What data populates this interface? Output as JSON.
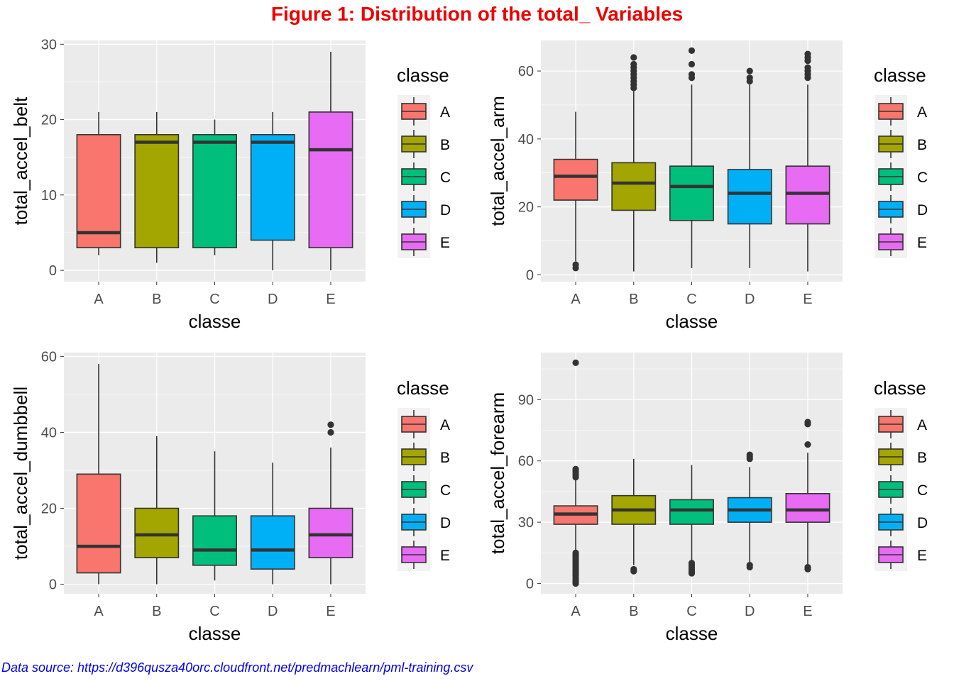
{
  "title": "Figure 1: Distribution of the total_ Variables",
  "caption": "Data source: https://d396qusza40orc.cloudfront.net/predmachlearn/pml-training.csv",
  "colors": {
    "title": "#ee0000",
    "caption": "#0000ee",
    "panel_bg": "#ebebeb",
    "grid": "#ffffff",
    "axis_text": "#4d4d4d",
    "text": "#000000",
    "box_line": "#333333",
    "classes": {
      "A": "#f8766d",
      "B": "#a3a500",
      "C": "#00bf7d",
      "D": "#00b0f6",
      "E": "#e76bf3"
    }
  },
  "legend": {
    "title": "classe",
    "items": [
      "A",
      "B",
      "C",
      "D",
      "E"
    ],
    "placement": "right"
  },
  "chart_data": [
    {
      "type": "boxplot",
      "xlabel": "classe",
      "ylabel": "total_accel_belt",
      "categories": [
        "A",
        "B",
        "C",
        "D",
        "E"
      ],
      "ylim": [
        -1.5,
        30.5
      ],
      "yticks": [
        0,
        10,
        20,
        30
      ],
      "boxes": [
        {
          "category": "A",
          "whisker_low": 2,
          "q1": 3,
          "median": 5,
          "q3": 18,
          "whisker_high": 21,
          "outliers": []
        },
        {
          "category": "B",
          "whisker_low": 1,
          "q1": 3,
          "median": 17,
          "q3": 18,
          "whisker_high": 21,
          "outliers": []
        },
        {
          "category": "C",
          "whisker_low": 2,
          "q1": 3,
          "median": 17,
          "q3": 18,
          "whisker_high": 20,
          "outliers": []
        },
        {
          "category": "D",
          "whisker_low": 0,
          "q1": 4,
          "median": 17,
          "q3": 18,
          "whisker_high": 21,
          "outliers": []
        },
        {
          "category": "E",
          "whisker_low": 0,
          "q1": 3,
          "median": 16,
          "q3": 21,
          "whisker_high": 29,
          "outliers": []
        }
      ]
    },
    {
      "type": "boxplot",
      "xlabel": "classe",
      "ylabel": "total_accel_arm",
      "categories": [
        "A",
        "B",
        "C",
        "D",
        "E"
      ],
      "ylim": [
        -2,
        69
      ],
      "yticks": [
        0,
        20,
        40,
        60
      ],
      "boxes": [
        {
          "category": "A",
          "whisker_low": 4,
          "q1": 22,
          "median": 29,
          "q3": 34,
          "whisker_high": 48,
          "outliers": [
            3,
            2
          ]
        },
        {
          "category": "B",
          "whisker_low": 1,
          "q1": 19,
          "median": 27,
          "q3": 33,
          "whisker_high": 54,
          "outliers": [
            55,
            56,
            57,
            58,
            59,
            60,
            61,
            62,
            64
          ]
        },
        {
          "category": "C",
          "whisker_low": 2,
          "q1": 16,
          "median": 26,
          "q3": 32,
          "whisker_high": 56,
          "outliers": [
            58,
            59,
            62,
            66
          ]
        },
        {
          "category": "D",
          "whisker_low": 2,
          "q1": 15,
          "median": 24,
          "q3": 31,
          "whisker_high": 56,
          "outliers": [
            57,
            58,
            60
          ]
        },
        {
          "category": "E",
          "whisker_low": 1,
          "q1": 15,
          "median": 24,
          "q3": 32,
          "whisker_high": 56,
          "outliers": [
            58,
            59,
            60,
            61,
            63,
            64,
            65
          ]
        }
      ]
    },
    {
      "type": "boxplot",
      "xlabel": "classe",
      "ylabel": "total_accel_dumbbell",
      "categories": [
        "A",
        "B",
        "C",
        "D",
        "E"
      ],
      "ylim": [
        -2.5,
        61
      ],
      "yticks": [
        0,
        20,
        40,
        60
      ],
      "boxes": [
        {
          "category": "A",
          "whisker_low": 0,
          "q1": 3,
          "median": 10,
          "q3": 29,
          "whisker_high": 58,
          "outliers": []
        },
        {
          "category": "B",
          "whisker_low": 0,
          "q1": 7,
          "median": 13,
          "q3": 20,
          "whisker_high": 39,
          "outliers": []
        },
        {
          "category": "C",
          "whisker_low": 1,
          "q1": 5,
          "median": 9,
          "q3": 18,
          "whisker_high": 35,
          "outliers": []
        },
        {
          "category": "D",
          "whisker_low": 0,
          "q1": 4,
          "median": 9,
          "q3": 18,
          "whisker_high": 32,
          "outliers": []
        },
        {
          "category": "E",
          "whisker_low": 0,
          "q1": 7,
          "median": 13,
          "q3": 20,
          "whisker_high": 36,
          "outliers": [
            40,
            42
          ]
        }
      ]
    },
    {
      "type": "boxplot",
      "xlabel": "classe",
      "ylabel": "total_accel_forearm",
      "categories": [
        "A",
        "B",
        "C",
        "D",
        "E"
      ],
      "ylim": [
        -5,
        113
      ],
      "yticks": [
        0,
        30,
        60,
        90
      ],
      "boxes": [
        {
          "category": "A",
          "whisker_low": 16,
          "q1": 29,
          "median": 34,
          "q3": 38,
          "whisker_high": 51,
          "outliers": [
            0,
            1,
            2,
            3,
            4,
            5,
            6,
            7,
            8,
            9,
            10,
            11,
            12,
            13,
            14,
            15,
            52,
            53,
            54,
            55,
            56,
            108
          ]
        },
        {
          "category": "B",
          "whisker_low": 9,
          "q1": 29,
          "median": 36,
          "q3": 43,
          "whisker_high": 61,
          "outliers": [
            6,
            7
          ]
        },
        {
          "category": "C",
          "whisker_low": 11,
          "q1": 29,
          "median": 36,
          "q3": 41,
          "whisker_high": 58,
          "outliers": [
            5,
            6,
            7,
            8,
            9,
            10
          ]
        },
        {
          "category": "D",
          "whisker_low": 10,
          "q1": 30,
          "median": 36,
          "q3": 42,
          "whisker_high": 57,
          "outliers": [
            8,
            9,
            61,
            62,
            63
          ]
        },
        {
          "category": "E",
          "whisker_low": 9,
          "q1": 30,
          "median": 36,
          "q3": 44,
          "whisker_high": 64,
          "outliers": [
            7,
            8,
            68,
            78,
            79
          ]
        }
      ]
    }
  ]
}
